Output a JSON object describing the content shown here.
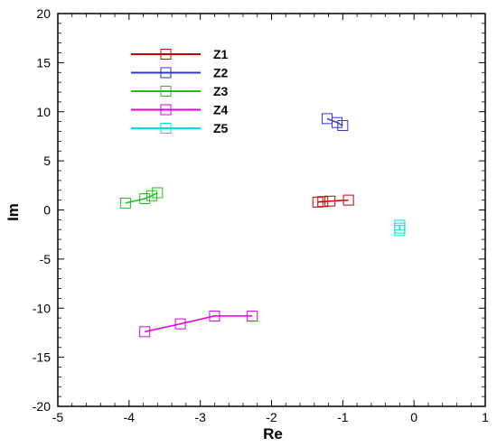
{
  "chart_data": {
    "type": "scatter",
    "title": "",
    "xlabel": "Re",
    "ylabel": "Im",
    "xlim": [
      -5,
      1
    ],
    "ylim": [
      -20,
      20
    ],
    "xticks": [
      -5,
      -4,
      -3,
      -2,
      -1,
      0,
      1
    ],
    "yticks": [
      -20,
      -15,
      -10,
      -5,
      0,
      5,
      10,
      15,
      20
    ],
    "grid": false,
    "legend_position": "top-left",
    "marker": "open-square",
    "series": [
      {
        "name": "Z1",
        "color": "#c00000",
        "points": [
          [
            -1.35,
            0.8
          ],
          [
            -1.28,
            0.85
          ],
          [
            -1.18,
            0.9
          ],
          [
            -0.92,
            1.0
          ]
        ]
      },
      {
        "name": "Z2",
        "color": "#3333cc",
        "points": [
          [
            -1.22,
            9.3
          ],
          [
            -1.08,
            8.9
          ],
          [
            -1.0,
            8.6
          ]
        ]
      },
      {
        "name": "Z3",
        "color": "#22bb22",
        "points": [
          [
            -4.05,
            0.7
          ],
          [
            -3.78,
            1.15
          ],
          [
            -3.68,
            1.45
          ],
          [
            -3.6,
            1.75
          ]
        ]
      },
      {
        "name": "Z4",
        "color": "#dd00dd",
        "points": [
          [
            -3.78,
            -12.4
          ],
          [
            -3.28,
            -11.6
          ],
          [
            -2.8,
            -10.8
          ],
          [
            -2.27,
            -10.8
          ]
        ]
      },
      {
        "name": "Z5",
        "color": "#00dddd",
        "points": [
          [
            -0.2,
            -1.55
          ],
          [
            -0.2,
            -1.85
          ],
          [
            -0.2,
            -2.1
          ]
        ]
      }
    ]
  }
}
